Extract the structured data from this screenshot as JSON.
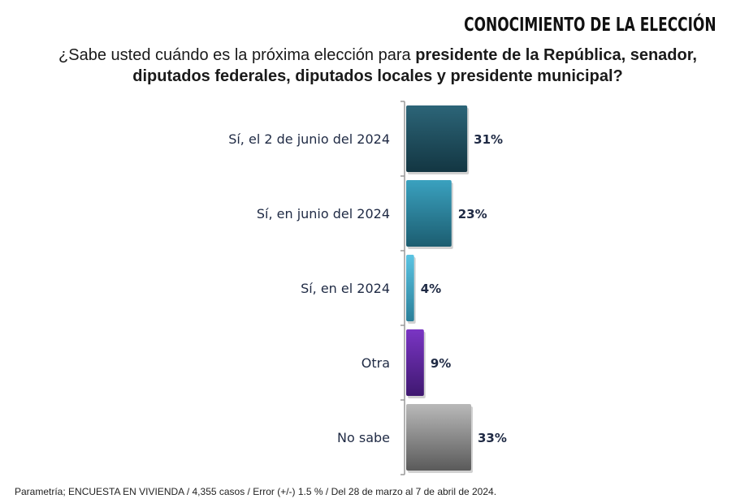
{
  "header": {
    "section_title": "CONOCIMIENTO DE LA ELECCIÓN"
  },
  "question": {
    "prefix": "¿Sabe usted cuándo es la próxima elección para ",
    "bold_part": "presidente de la República, senador, diputados federales, diputados locales y presidente municipal?"
  },
  "footnote": "Parametría; ENCUESTA EN VIVIENDA / 4,355 casos / Error (+/-) 1.5 % / Del 28 de marzo al 7 de abril de 2024.",
  "chart_data": {
    "type": "bar",
    "orientation": "horizontal",
    "categories": [
      "Sí, el 2 de junio del 2024",
      "Sí, en junio del 2024",
      "Sí, en el 2024",
      "Otra",
      "No sabe"
    ],
    "values": [
      31,
      23,
      4,
      9,
      33
    ],
    "value_labels": [
      "31%",
      "23%",
      "4%",
      "9%",
      "33%"
    ],
    "unit": "%",
    "colors": [
      [
        "#2c6578",
        "#133642"
      ],
      [
        "#3aa1bf",
        "#1c5d70"
      ],
      [
        "#5bc4e3",
        "#2b7f99"
      ],
      [
        "#7a35c4",
        "#3f1870"
      ],
      [
        "#b9b9b9",
        "#5a5a5a"
      ]
    ],
    "xlim": [
      0,
      35
    ],
    "grid": false,
    "legend": "none"
  }
}
